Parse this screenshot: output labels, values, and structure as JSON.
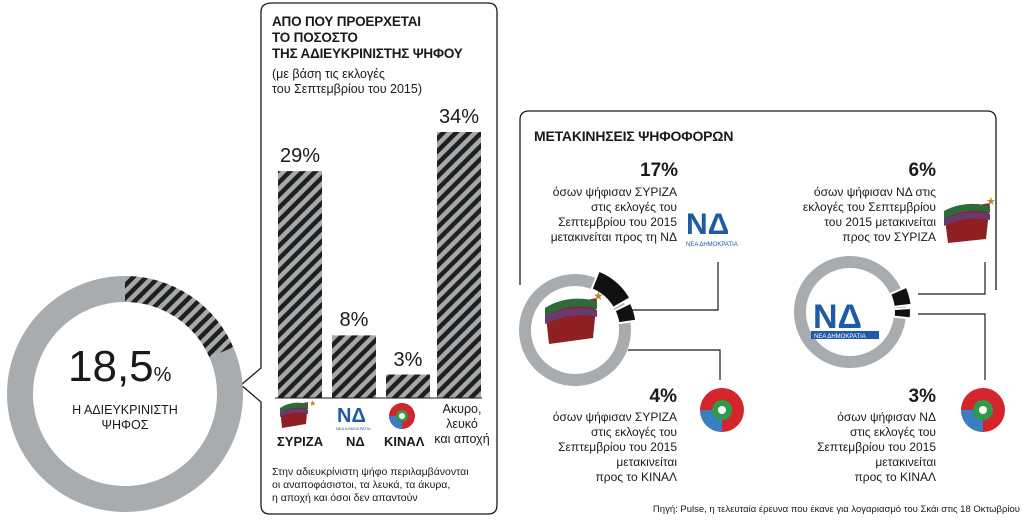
{
  "summary": {
    "value": "18,5",
    "unit": "%",
    "label_line1": "Η ΑΔΙΕΥΚΡΙΝΙΣΤΗ",
    "label_line2": "ΨΗΦΟΣ",
    "fraction": 0.185
  },
  "panel": {
    "title_line1": "ΑΠΟ ΠΟΥ ΠΡΟΕΡΧΕΤΑΙ",
    "title_line2": "ΤΟ ΠΟΣΟΣΤΟ",
    "title_line3": "ΤΗΣ ΑΔΙΕΥΚΡΙΝΙΣΤΗΣ ΨΗΦΟΥ",
    "subtitle_line1": "(με βάση τις εκλογές",
    "subtitle_line2": "του Σεπτεμβρίου του 2015)",
    "note_line1": "Στην αδιευκρίνιστη ψήφο περιλαμβάνονται",
    "note_line2": "οι αναποφάσιστοι, τα λευκά, τα άκυρα,",
    "note_line3": "η αποχή και όσοι δεν απαντούν"
  },
  "chart_data": {
    "type": "bar",
    "categories": [
      "ΣΥΡΙΖΑ",
      "ΝΔ",
      "ΚΙΝΑΛ",
      "Ακυρο, λευκό και αποχή"
    ],
    "values": [
      29,
      8,
      3,
      34
    ],
    "value_labels": [
      "29%",
      "8%",
      "3%",
      "34%"
    ],
    "ylim": [
      0,
      34
    ]
  },
  "categories_display": {
    "syriza": "ΣΥΡΙΖΑ",
    "nd": "ΝΔ",
    "kinal": "ΚΙΝΑΛ",
    "other_line1": "Ακυρο,",
    "other_line2": "λευκό",
    "other_line3": "και αποχή"
  },
  "flows": {
    "title": "ΜΕΤΑΚΙΝΗΣΕΙΣ ΨΗΦΟΦΟΡΩΝ",
    "syriza_to_nd": {
      "value": "17%",
      "line1": "όσων ψήφισαν ΣΥΡΙΖΑ",
      "line2": "στις εκλογές του",
      "line3": "Σεπτεμβρίου του 2015",
      "line4": "μετακινείται προς τη ΝΔ"
    },
    "syriza_to_kinal": {
      "value": "4%",
      "line1": "όσων ψήφισαν ΣΥΡΙΖΑ",
      "line2": "στις εκλογές του",
      "line3": "Σεπτεμβρίου του 2015",
      "line4": "μετακινείται",
      "line5": "προς το ΚΙΝΑΛ"
    },
    "nd_to_syriza": {
      "value": "6%",
      "line1": "όσων ψήφισαν ΝΔ στις",
      "line2": "εκλογές του Σεπτεμβρίου",
      "line3": "του 2015 μετακινείται",
      "line4": "προς τον ΣΥΡΙΖΑ"
    },
    "nd_to_kinal": {
      "value": "3%",
      "line1": "όσων ψήφισαν ΝΔ",
      "line2": "στις εκλογές του",
      "line3": "Σεπτεμβρίου του 2015",
      "line4": "μετακινείται",
      "line5": "προς το ΚΙΝΑΛ"
    }
  },
  "logos": {
    "nd_text": "ΝΔ",
    "nd_caption": "ΝΕΑ ΔΗΜΟΚΡΑΤΙΑ"
  },
  "source": "Πηγή: Pulse, η τελευταία έρευνα που έκανε για λογαριασμό του Σκάι στις 18 Οκτωβρίου",
  "colors": {
    "ring_gray": "#a9acae",
    "hatch_dark": "#1f1f1f",
    "hatch_light": "#a6a9ab",
    "syriza_red": "#8e1f22",
    "syriza_green": "#2e6b3c",
    "syriza_purple": "#6a3a6e",
    "nd_blue": "#1f5aa8",
    "kinal_red": "#d2262c",
    "kinal_green": "#2e9a4a",
    "kinal_blue": "#3a7fc4"
  }
}
